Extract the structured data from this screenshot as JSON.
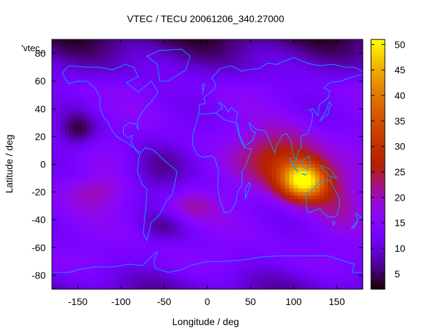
{
  "title": "VTEC / TECU 20061206_340.27000",
  "chart_data": {
    "type": "heatmap",
    "title": "VTEC / TECU 20061206_340.27000",
    "xlabel": "Longitude / deg",
    "ylabel": "Latitude / deg",
    "key_label": "'vtec_",
    "xlim": [
      -180,
      180
    ],
    "ylim": [
      -90,
      90
    ],
    "xticks": [
      -150,
      -100,
      -50,
      0,
      50,
      100,
      150
    ],
    "yticks": [
      -80,
      -60,
      -40,
      -20,
      0,
      20,
      40,
      60,
      80
    ],
    "colorbar": {
      "min": 2,
      "max": 51,
      "ticks": [
        5,
        10,
        15,
        20,
        25,
        30,
        35,
        40,
        45,
        50
      ]
    },
    "palette": "gnuplot black-purple-red-orange-yellow",
    "coastline_color": "#00a0ff",
    "features": {
      "max_vtec_approx": 50,
      "max_location_lon_lat": [
        112,
        -12
      ],
      "min_vtec_approx": 3,
      "min_location_lon_lat": [
        -150,
        25
      ]
    }
  }
}
